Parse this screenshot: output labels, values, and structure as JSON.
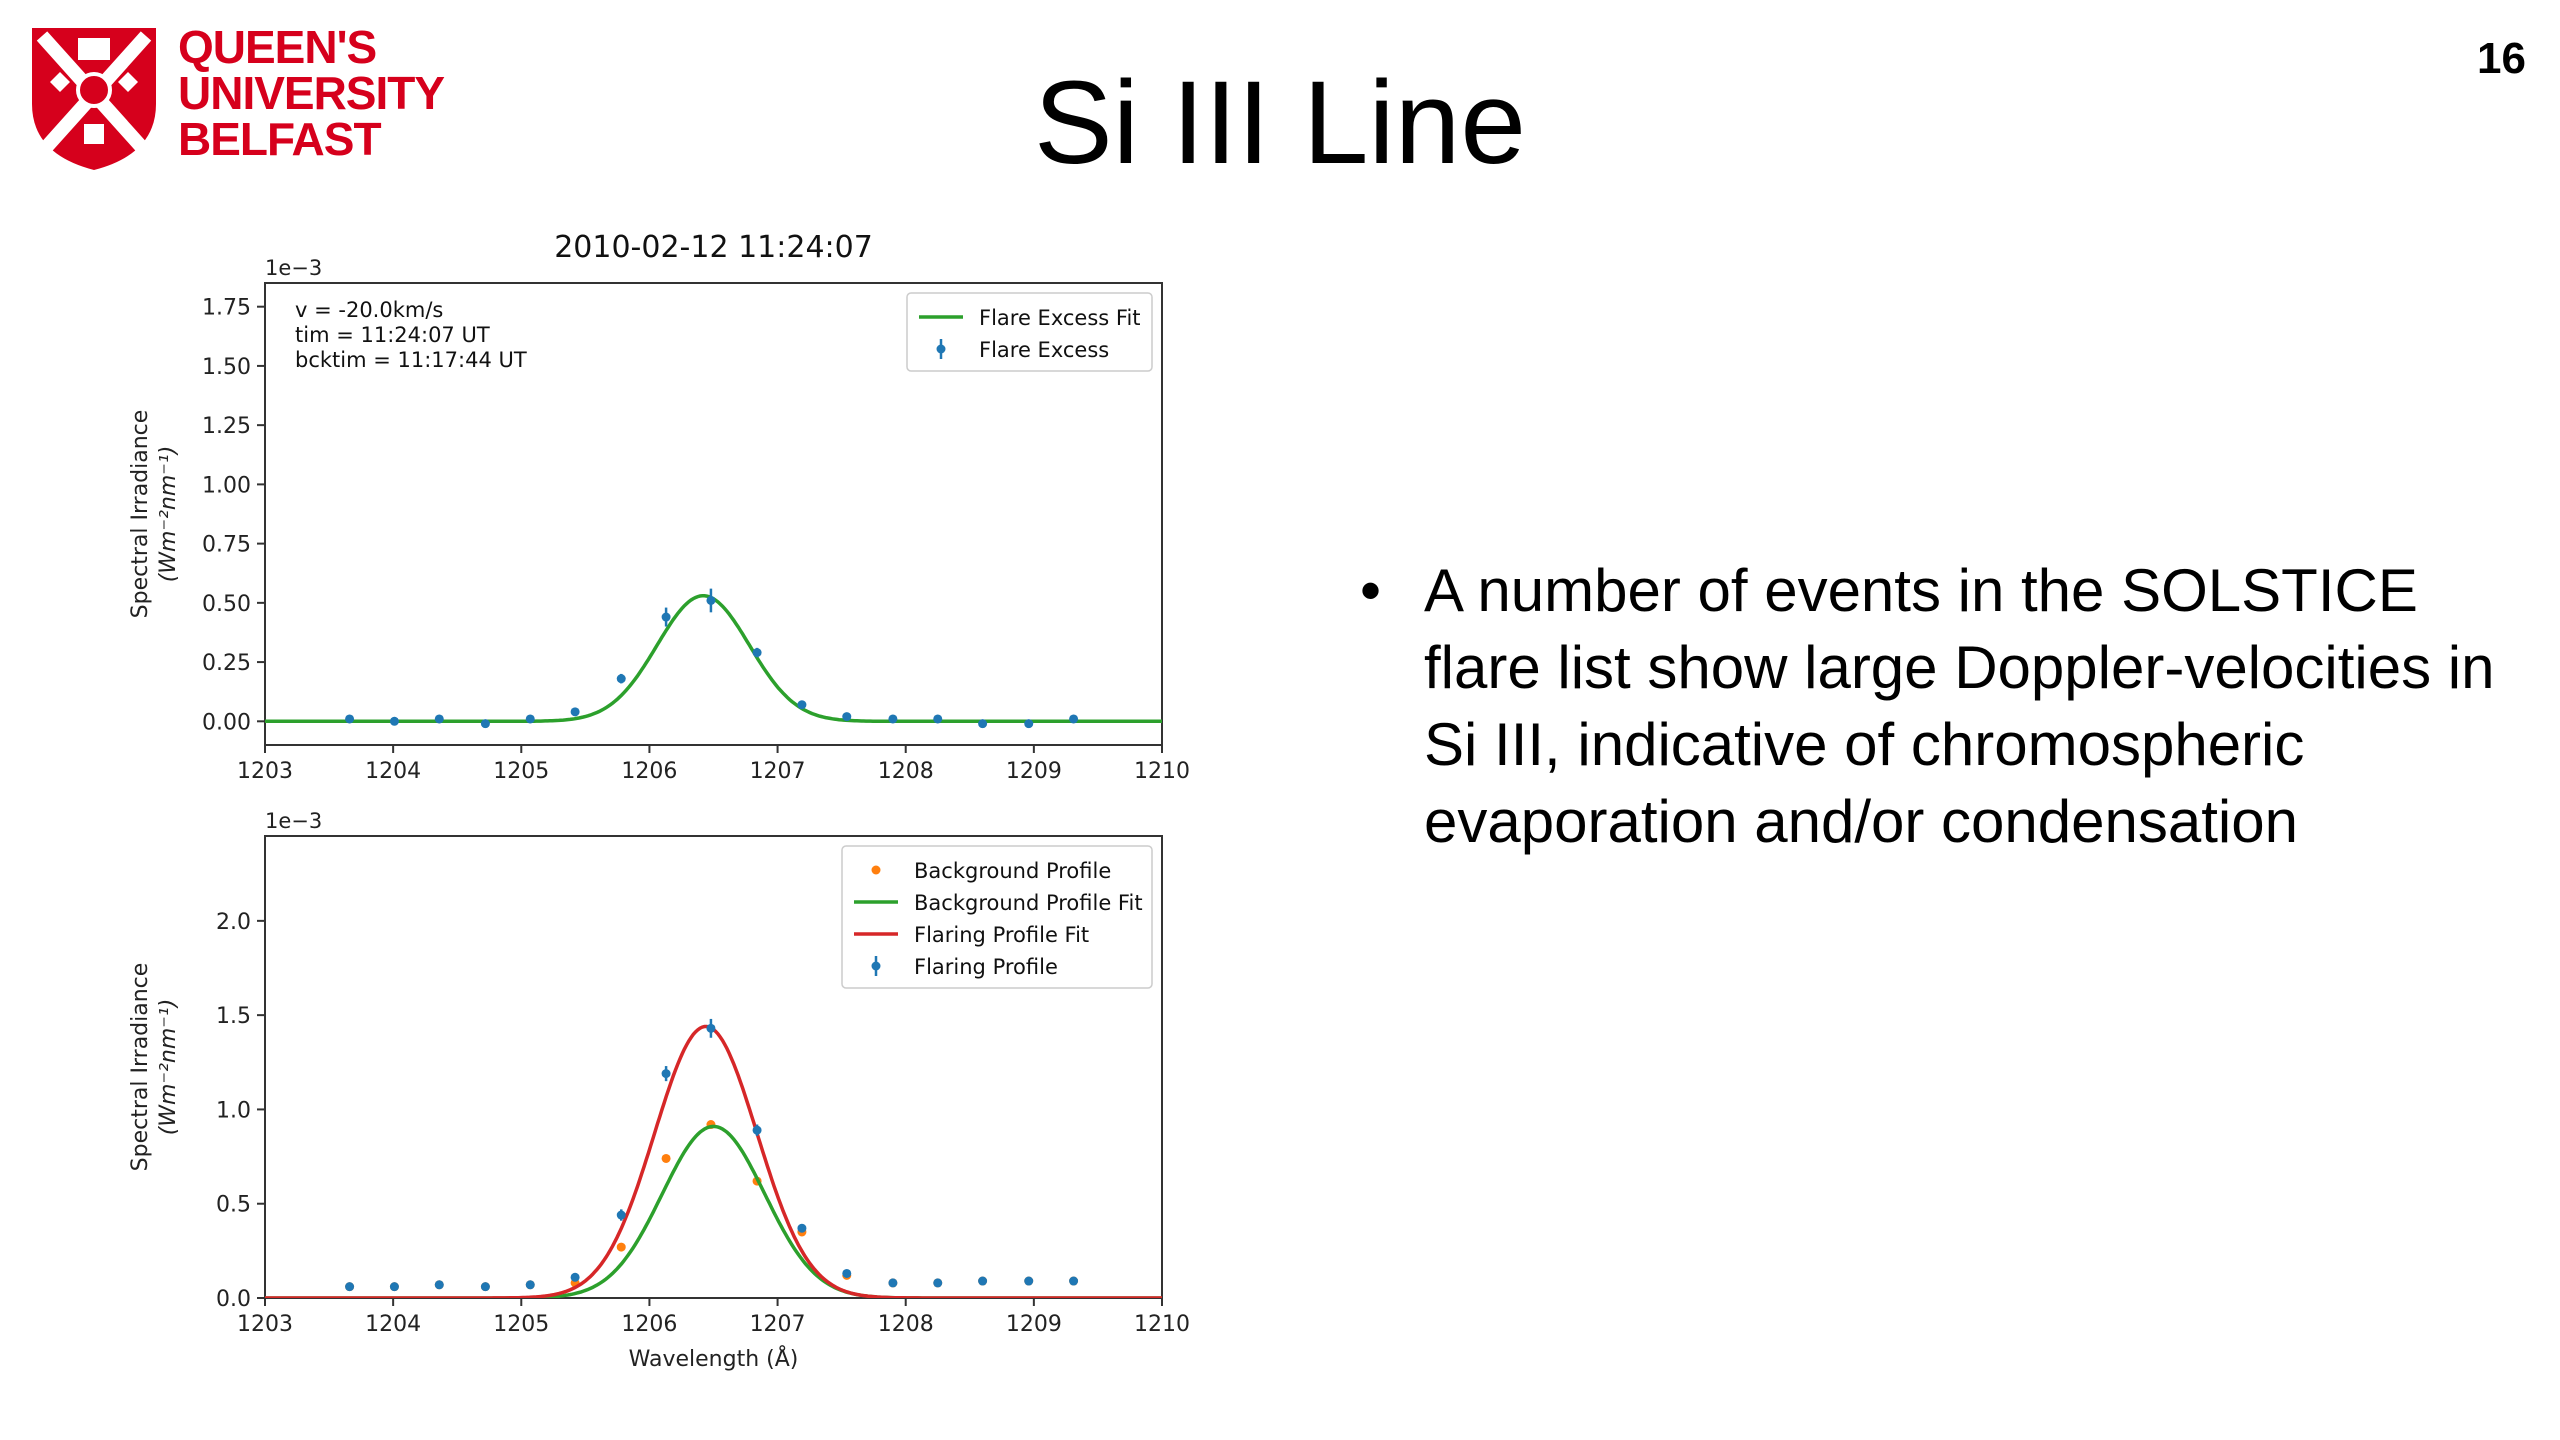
{
  "slide": {
    "logo_lines": [
      "QUEEN'S",
      "UNIVERSITY",
      "BELFAST"
    ],
    "title": "Si III Line",
    "page_number": "16",
    "bullets": [
      "A number of events in the SOLSTICE flare list show large Doppler-velocities in Si III, indicative of chromospheric evaporation and/or condensation"
    ]
  },
  "colors": {
    "brand_red": "#d6001c",
    "blue": "#1f77b4",
    "orange": "#ff7f0e",
    "green": "#2ca02c",
    "red": "#d62728"
  },
  "chart_data": [
    {
      "type": "line",
      "title": "2010-02-12 11:24:07",
      "xlabel": "",
      "ylabel_line1": "Spectral Irradiance",
      "ylabel_line2": "(Wm⁻²nm⁻¹)",
      "offset_label": "1e−3",
      "xlim": [
        1203,
        1210
      ],
      "ylim": [
        -0.1,
        1.85
      ],
      "xticks": [
        "1203",
        "1204",
        "1205",
        "1206",
        "1207",
        "1208",
        "1209",
        "1210"
      ],
      "yticks": [
        "0.00",
        "0.25",
        "0.50",
        "0.75",
        "1.00",
        "1.25",
        "1.50",
        "1.75"
      ],
      "annotation": [
        "v = -20.0km/s",
        "tim =  11:24:07 UT",
        "bcktim =  11:17:44 UT"
      ],
      "legend_position": "top-right",
      "series": [
        {
          "name": "Flare Excess Fit",
          "kind": "gaussian",
          "amplitude": 0.53,
          "center": 1206.42,
          "sigma": 0.36,
          "baseline": 0.0,
          "color": "#2ca02c"
        },
        {
          "name": "Flare Excess",
          "kind": "errorbar",
          "color": "#1f77b4",
          "x": [
            1203.66,
            1204.01,
            1204.36,
            1204.72,
            1205.07,
            1205.42,
            1205.78,
            1206.13,
            1206.48,
            1206.84,
            1207.19,
            1207.54,
            1207.9,
            1208.25,
            1208.6,
            1208.96,
            1209.31
          ],
          "y": [
            0.01,
            0.0,
            0.01,
            -0.01,
            0.01,
            0.04,
            0.18,
            0.44,
            0.51,
            0.29,
            0.07,
            0.02,
            0.01,
            0.01,
            -0.01,
            -0.01,
            0.01
          ],
          "yerr": [
            0.01,
            0.01,
            0.01,
            0.01,
            0.01,
            0.01,
            0.02,
            0.04,
            0.05,
            0.02,
            0.01,
            0.01,
            0.01,
            0.01,
            0.01,
            0.01,
            0.01
          ]
        }
      ]
    },
    {
      "type": "line",
      "title": "",
      "xlabel": "Wavelength (Å)",
      "ylabel_line1": "Spectral Irradiance",
      "ylabel_line2": "(Wm⁻²nm⁻¹)",
      "offset_label": "1e−3",
      "xlim": [
        1203,
        1210
      ],
      "ylim": [
        0.0,
        2.45
      ],
      "xticks": [
        "1203",
        "1204",
        "1205",
        "1206",
        "1207",
        "1208",
        "1209",
        "1210"
      ],
      "yticks": [
        "0.0",
        "0.5",
        "1.0",
        "1.5",
        "2.0"
      ],
      "legend_position": "top-right",
      "series": [
        {
          "name": "Background Profile",
          "kind": "scatter",
          "color": "#ff7f0e",
          "x": [
            1203.66,
            1204.01,
            1204.36,
            1204.72,
            1205.07,
            1205.42,
            1205.78,
            1206.13,
            1206.48,
            1206.84,
            1207.19,
            1207.54,
            1207.9,
            1208.25,
            1208.6,
            1208.96,
            1209.31
          ],
          "y": [
            0.06,
            0.06,
            0.07,
            0.06,
            0.07,
            0.08,
            0.27,
            0.74,
            0.92,
            0.62,
            0.35,
            0.12,
            0.08,
            0.08,
            0.09,
            0.09,
            0.09
          ]
        },
        {
          "name": "Background Profile Fit",
          "kind": "gaussian",
          "amplitude": 0.91,
          "center": 1206.5,
          "sigma": 0.4,
          "baseline": 0.0,
          "color": "#2ca02c"
        },
        {
          "name": "Flaring Profile Fit",
          "kind": "gaussian",
          "amplitude": 1.44,
          "center": 1206.44,
          "sigma": 0.4,
          "baseline": 0.0,
          "color": "#d62728"
        },
        {
          "name": "Flaring Profile",
          "kind": "errorbar",
          "color": "#1f77b4",
          "x": [
            1203.66,
            1204.01,
            1204.36,
            1204.72,
            1205.07,
            1205.42,
            1205.78,
            1206.13,
            1206.48,
            1206.84,
            1207.19,
            1207.54,
            1207.9,
            1208.25,
            1208.6,
            1208.96,
            1209.31
          ],
          "y": [
            0.06,
            0.06,
            0.07,
            0.06,
            0.07,
            0.11,
            0.44,
            1.19,
            1.43,
            0.89,
            0.37,
            0.13,
            0.08,
            0.08,
            0.09,
            0.09,
            0.09
          ],
          "yerr": [
            0.01,
            0.01,
            0.01,
            0.01,
            0.01,
            0.01,
            0.03,
            0.04,
            0.05,
            0.03,
            0.02,
            0.01,
            0.01,
            0.01,
            0.01,
            0.01,
            0.01
          ]
        }
      ]
    }
  ]
}
